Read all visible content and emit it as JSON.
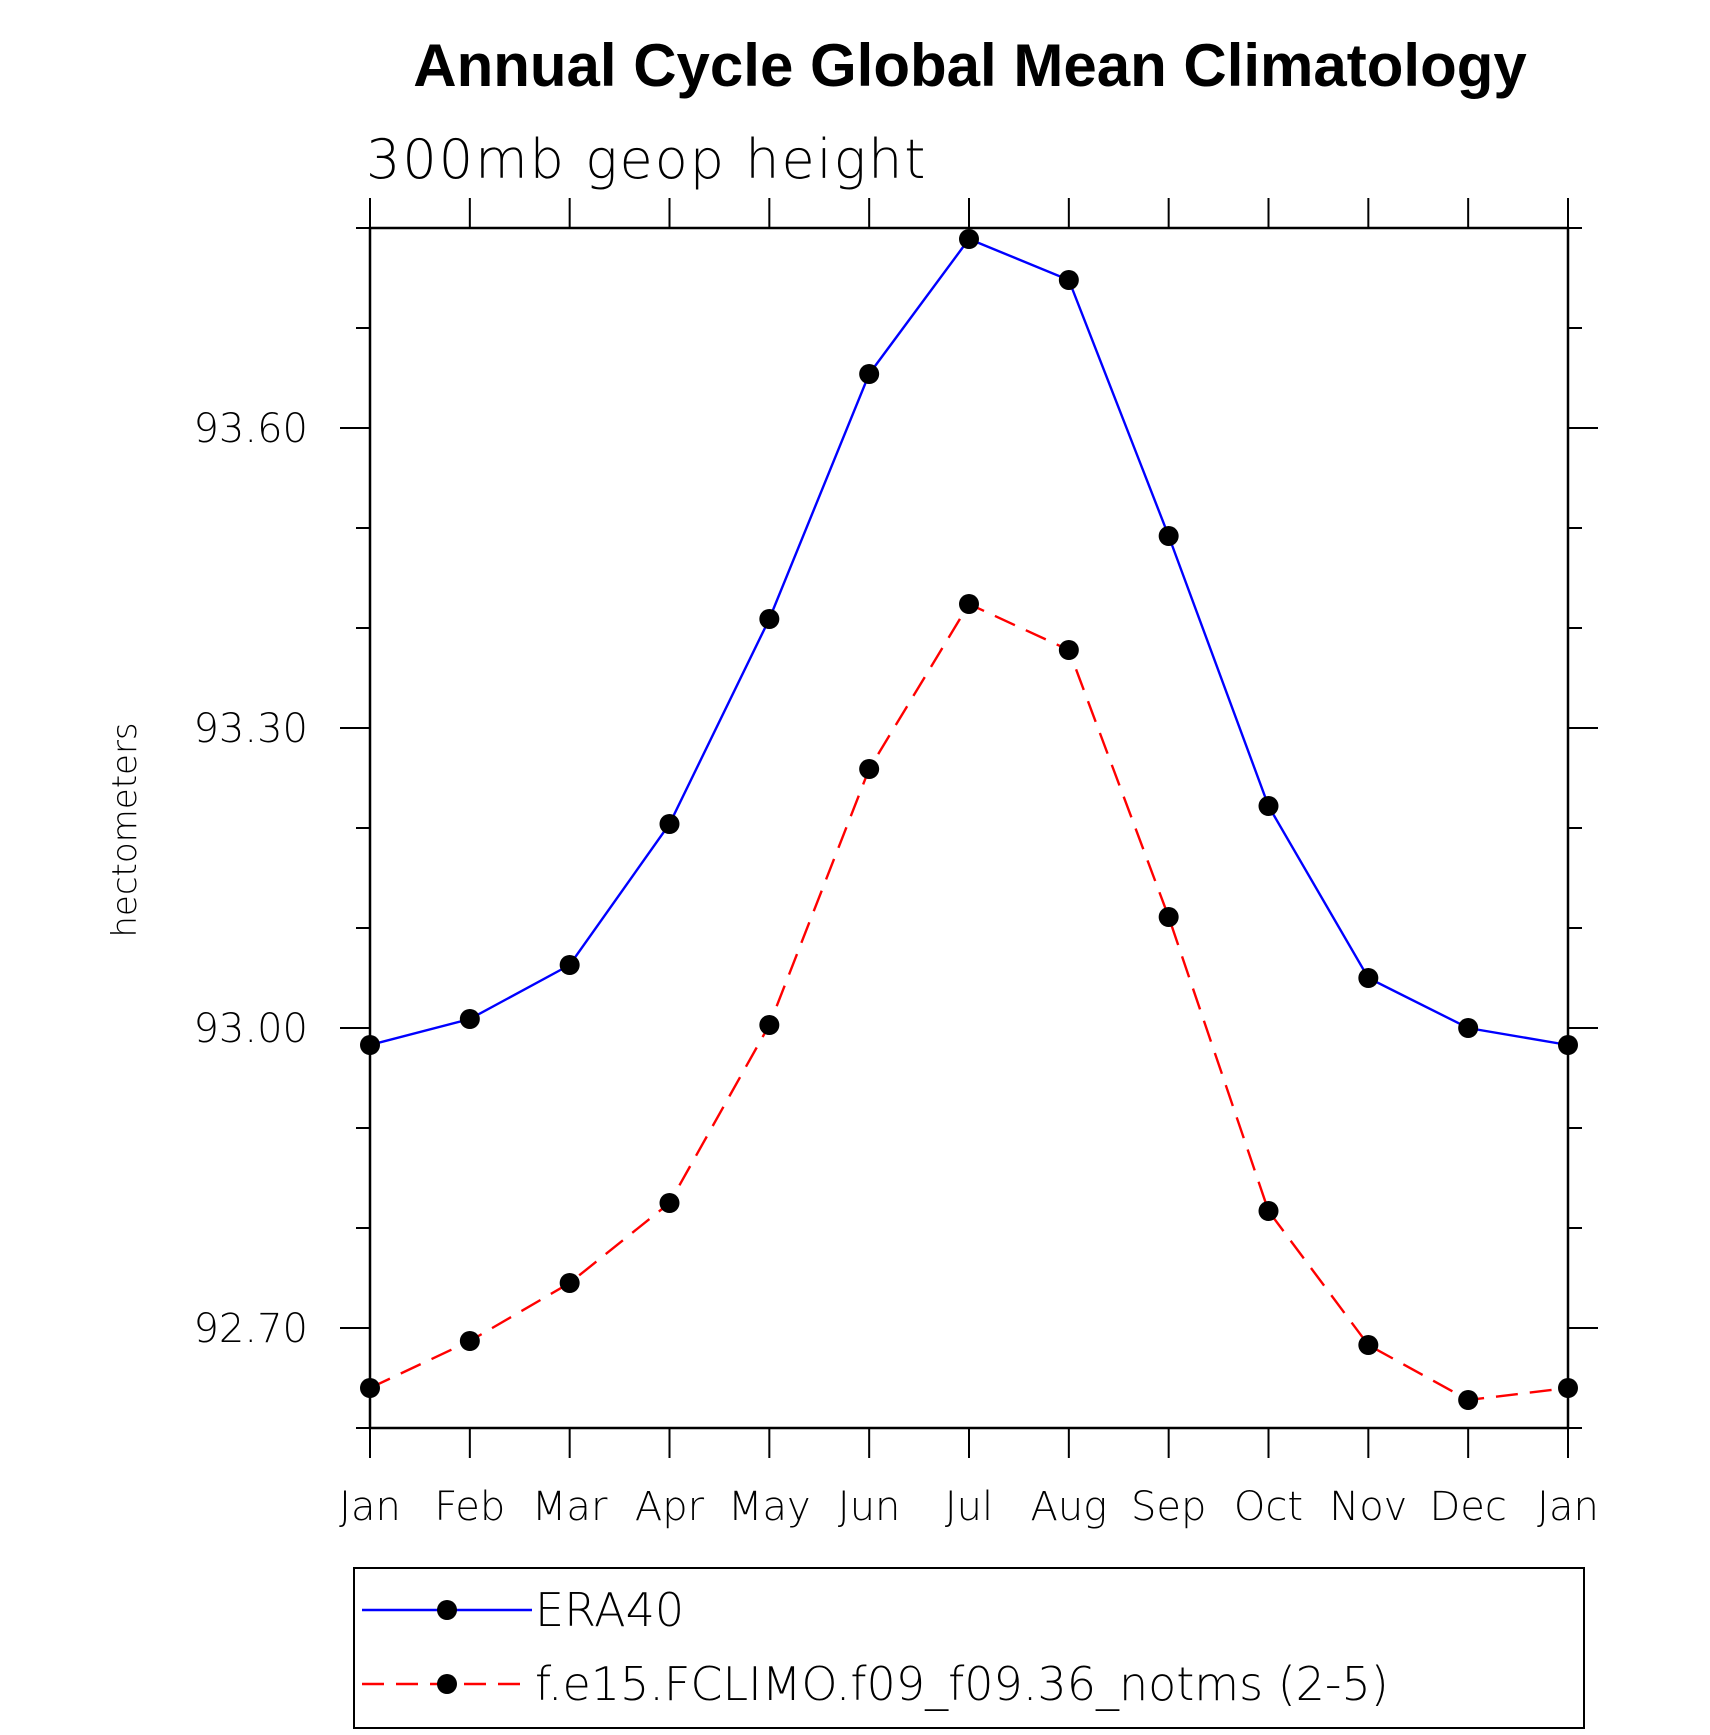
{
  "chart_data": {
    "type": "line",
    "title": "Annual Cycle Global Mean Climatology",
    "subtitle": "300mb geop height",
    "xlabel": "",
    "ylabel": "hectometers",
    "categories": [
      "Jan",
      "Feb",
      "Mar",
      "Apr",
      "May",
      "Jun",
      "Jul",
      "Aug",
      "Sep",
      "Oct",
      "Nov",
      "Dec",
      "Jan"
    ],
    "yticks": [
      92.7,
      93.0,
      93.3,
      93.6
    ],
    "ytick_labels": [
      "92.70",
      "93.00",
      "93.30",
      "93.60"
    ],
    "ylim": [
      92.6,
      93.8
    ],
    "series": [
      {
        "name": "ERA40",
        "color": "#0000ff",
        "dash": "solid",
        "marker": "filled-circle",
        "values": [
          92.983,
          93.009,
          93.063,
          93.204,
          93.409,
          93.654,
          93.789,
          93.748,
          93.492,
          93.222,
          93.05,
          93.0,
          92.983
        ]
      },
      {
        "name": "f.e15.FCLIMO.f09_f09.36_notms (2-5)",
        "color": "#ff0000",
        "dash": "dashed",
        "marker": "filled-circle",
        "values": [
          92.64,
          92.687,
          92.745,
          92.825,
          93.003,
          93.259,
          93.424,
          93.378,
          93.111,
          92.817,
          92.683,
          92.628,
          92.64
        ]
      }
    ],
    "legend_position": "bottom",
    "grid": false
  }
}
